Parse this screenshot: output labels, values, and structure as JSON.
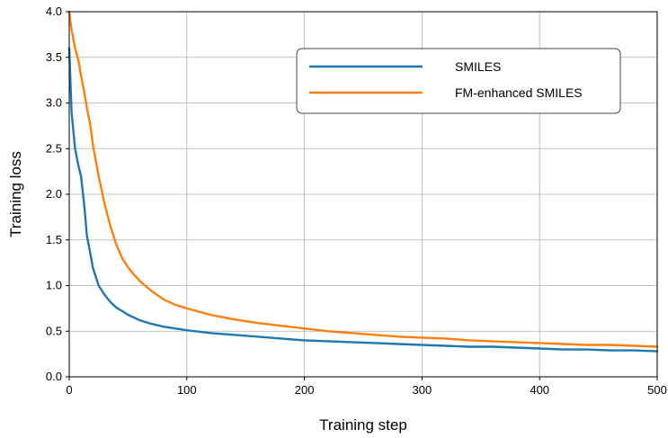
{
  "chart_data": {
    "type": "line",
    "title": "",
    "xlabel": "Training step",
    "ylabel": "Training loss",
    "xlim": [
      0,
      500
    ],
    "ylim": [
      0.0,
      4.0
    ],
    "grid": true,
    "legend_position": "top-right",
    "x_ticks": [
      "0",
      "100",
      "200",
      "300",
      "400",
      "500"
    ],
    "y_ticks": [
      "0.0",
      "0.5",
      "1.0",
      "1.5",
      "2.0",
      "2.5",
      "3.0",
      "3.5",
      "4.0"
    ],
    "x": [
      0,
      2,
      5,
      8,
      10,
      13,
      15,
      18,
      20,
      25,
      30,
      35,
      40,
      45,
      50,
      55,
      60,
      70,
      80,
      90,
      100,
      120,
      140,
      160,
      180,
      200,
      220,
      240,
      260,
      280,
      300,
      320,
      340,
      360,
      380,
      400,
      420,
      440,
      460,
      480,
      500
    ],
    "series": [
      {
        "name": "SMILES",
        "color": "#1f77b4",
        "values": [
          3.6,
          2.9,
          2.5,
          2.3,
          2.2,
          1.85,
          1.55,
          1.35,
          1.2,
          1.0,
          0.9,
          0.82,
          0.76,
          0.72,
          0.68,
          0.65,
          0.62,
          0.58,
          0.55,
          0.53,
          0.51,
          0.48,
          0.46,
          0.44,
          0.42,
          0.4,
          0.39,
          0.38,
          0.37,
          0.36,
          0.35,
          0.34,
          0.33,
          0.33,
          0.32,
          0.31,
          0.3,
          0.3,
          0.29,
          0.29,
          0.28
        ]
      },
      {
        "name": "FM-enhanced SMILES",
        "color": "#ff7f0e",
        "values": [
          4.0,
          3.8,
          3.6,
          3.45,
          3.3,
          3.1,
          2.95,
          2.75,
          2.55,
          2.2,
          1.9,
          1.65,
          1.45,
          1.3,
          1.2,
          1.12,
          1.05,
          0.94,
          0.85,
          0.79,
          0.75,
          0.68,
          0.63,
          0.59,
          0.56,
          0.53,
          0.5,
          0.48,
          0.46,
          0.44,
          0.43,
          0.42,
          0.4,
          0.39,
          0.38,
          0.37,
          0.36,
          0.35,
          0.35,
          0.34,
          0.33
        ]
      }
    ]
  }
}
